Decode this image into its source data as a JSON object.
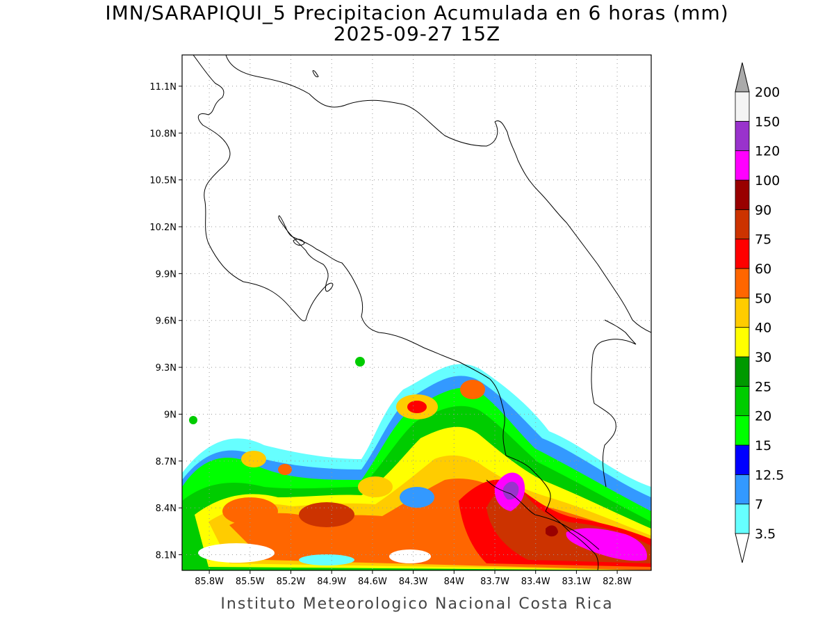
{
  "header": {
    "title_line1": "IMN/SARAPIQUI_5 Precipitacion Acumulada en 6 horas (mm)",
    "title_line2": "2025-09-27 15Z"
  },
  "footer": {
    "credit": "Instituto Meteorologico Nacional Costa Rica"
  },
  "map": {
    "lon_range": [
      -86.0,
      -82.55
    ],
    "lat_range": [
      8.0,
      11.3
    ],
    "lat_ticks": [
      {
        "value": 8.1,
        "label": "8.1N"
      },
      {
        "value": 8.4,
        "label": "8.4N"
      },
      {
        "value": 8.7,
        "label": "8.7N"
      },
      {
        "value": 9.0,
        "label": "9N"
      },
      {
        "value": 9.3,
        "label": "9.3N"
      },
      {
        "value": 9.6,
        "label": "9.6N"
      },
      {
        "value": 9.9,
        "label": "9.9N"
      },
      {
        "value": 10.2,
        "label": "10.2N"
      },
      {
        "value": 10.5,
        "label": "10.5N"
      },
      {
        "value": 10.8,
        "label": "10.8N"
      },
      {
        "value": 11.1,
        "label": "11.1N"
      }
    ],
    "lon_ticks": [
      {
        "value": -85.8,
        "label": "85.8W"
      },
      {
        "value": -85.5,
        "label": "85.5W"
      },
      {
        "value": -85.2,
        "label": "85.2W"
      },
      {
        "value": -84.9,
        "label": "84.9W"
      },
      {
        "value": -84.6,
        "label": "84.6W"
      },
      {
        "value": -84.3,
        "label": "84.3W"
      },
      {
        "value": -84.0,
        "label": "84W"
      },
      {
        "value": -83.7,
        "label": "83.7W"
      },
      {
        "value": -83.4,
        "label": "83.4W"
      },
      {
        "value": -83.1,
        "label": "83.1W"
      },
      {
        "value": -82.8,
        "label": "82.8W"
      }
    ],
    "grid": true
  },
  "colorbar": {
    "unit": "mm",
    "levels": [
      {
        "label": "3.5",
        "color": "#66ffff"
      },
      {
        "label": "7",
        "color": "#3399ff"
      },
      {
        "label": "12.5",
        "color": "#0000ff"
      },
      {
        "label": "15",
        "color": "#00ff00"
      },
      {
        "label": "20",
        "color": "#00cc00"
      },
      {
        "label": "25",
        "color": "#009900"
      },
      {
        "label": "30",
        "color": "#ffff00"
      },
      {
        "label": "40",
        "color": "#ffcc00"
      },
      {
        "label": "50",
        "color": "#ff6600"
      },
      {
        "label": "60",
        "color": "#ff0000"
      },
      {
        "label": "75",
        "color": "#cc3300"
      },
      {
        "label": "90",
        "color": "#990000"
      },
      {
        "label": "100",
        "color": "#ff00ff"
      },
      {
        "label": "120",
        "color": "#9933cc"
      },
      {
        "label": "150",
        "color": "#f4f4f4"
      },
      {
        "label": "200",
        "color": "#aaaaaa"
      }
    ]
  }
}
